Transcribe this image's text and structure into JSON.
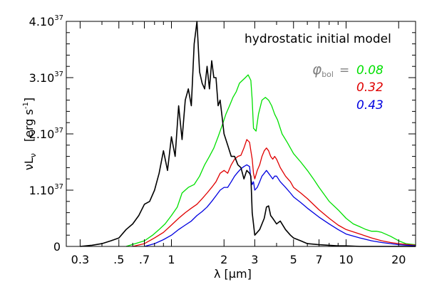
{
  "chart_data": {
    "type": "line",
    "title": "",
    "annotation_main": "hydrostatic initial model",
    "phi_symbol": "φ",
    "phi_subscript": "bol",
    "phi_equals": "=",
    "xlabel": "λ   [μm]",
    "ylabel_main": "νL",
    "ylabel_sub": "ν",
    "ylabel_unit": "[erg s",
    "ylabel_unit_sup": "-1",
    "ylabel_unit_close": "]",
    "x_scale": "log",
    "xlim": [
      0.25,
      25
    ],
    "ylim": [
      0,
      4e+37
    ],
    "grid": false,
    "x_ticks": [
      {
        "value": 0.3,
        "label": "0.3"
      },
      {
        "value": 0.5,
        "label": ".5"
      },
      {
        "value": 0.7,
        "label": ".7"
      },
      {
        "value": 1,
        "label": "1"
      },
      {
        "value": 2,
        "label": "2"
      },
      {
        "value": 3,
        "label": "3"
      },
      {
        "value": 5,
        "label": "5"
      },
      {
        "value": 7,
        "label": "7"
      },
      {
        "value": 10,
        "label": "10"
      },
      {
        "value": 20,
        "label": "20"
      }
    ],
    "y_ticks": [
      {
        "value": 0,
        "mant": "0",
        "exp": ""
      },
      {
        "value": 1e+37,
        "mant": "1.10",
        "exp": "37"
      },
      {
        "value": 2e+37,
        "mant": "2.10",
        "exp": "37"
      },
      {
        "value": 3e+37,
        "mant": "3.10",
        "exp": "37"
      },
      {
        "value": 4e+37,
        "mant": "4.10",
        "exp": "37"
      }
    ],
    "legend": [
      {
        "label": "0.08",
        "color": "#00e000"
      },
      {
        "label": "0.32",
        "color": "#e00000"
      },
      {
        "label": "0.43",
        "color": "#0000e0"
      }
    ],
    "series": [
      {
        "label": "0.08",
        "color": "#00e000",
        "x": [
          0.55,
          0.62,
          0.7,
          0.78,
          0.85,
          0.92,
          1.0,
          1.08,
          1.15,
          1.25,
          1.35,
          1.45,
          1.55,
          1.65,
          1.75,
          1.85,
          1.95,
          2.05,
          2.15,
          2.25,
          2.35,
          2.45,
          2.55,
          2.65,
          2.75,
          2.85,
          2.9,
          2.95,
          3.05,
          3.15,
          3.3,
          3.45,
          3.6,
          3.75,
          3.9,
          4.05,
          4.3,
          4.6,
          5.0,
          5.5,
          6.0,
          6.5,
          7.0,
          8.0,
          9.0,
          10.0,
          11.0,
          12.0,
          13.0,
          14.0,
          15.0,
          16.0,
          18.0,
          20.0,
          22.0,
          25.0
        ],
        "y": [
          0.0,
          0.05,
          0.1,
          0.2,
          0.3,
          0.4,
          0.55,
          0.7,
          0.95,
          1.05,
          1.1,
          1.25,
          1.45,
          1.6,
          1.75,
          1.95,
          2.15,
          2.35,
          2.5,
          2.65,
          2.75,
          2.9,
          2.95,
          3.0,
          3.05,
          2.95,
          2.6,
          2.1,
          2.05,
          2.35,
          2.6,
          2.65,
          2.6,
          2.5,
          2.35,
          2.25,
          2.0,
          1.85,
          1.65,
          1.5,
          1.35,
          1.2,
          1.05,
          0.8,
          0.65,
          0.5,
          0.4,
          0.35,
          0.3,
          0.27,
          0.27,
          0.25,
          0.18,
          0.1,
          0.05,
          0.03
        ]
      },
      {
        "label": "0.32",
        "color": "#e00000",
        "x": [
          0.6,
          0.7,
          0.8,
          0.9,
          1.0,
          1.1,
          1.2,
          1.3,
          1.4,
          1.5,
          1.6,
          1.7,
          1.8,
          1.9,
          2.0,
          2.1,
          2.2,
          2.3,
          2.4,
          2.5,
          2.6,
          2.7,
          2.8,
          2.85,
          2.9,
          2.95,
          3.0,
          3.1,
          3.2,
          3.3,
          3.4,
          3.5,
          3.6,
          3.7,
          3.8,
          3.9,
          4.0,
          4.2,
          4.5,
          4.8,
          5.0,
          5.5,
          6.0,
          7.0,
          8.0,
          9.0,
          10.0,
          12.0,
          14.0,
          16.0,
          18.0,
          20.0,
          25.0
        ],
        "y": [
          0.0,
          0.05,
          0.15,
          0.25,
          0.38,
          0.5,
          0.6,
          0.68,
          0.75,
          0.85,
          0.95,
          1.05,
          1.15,
          1.3,
          1.35,
          1.3,
          1.45,
          1.55,
          1.6,
          1.62,
          1.75,
          1.9,
          1.85,
          1.7,
          1.55,
          1.3,
          1.2,
          1.35,
          1.45,
          1.6,
          1.7,
          1.75,
          1.7,
          1.6,
          1.55,
          1.6,
          1.55,
          1.4,
          1.25,
          1.15,
          1.05,
          0.95,
          0.85,
          0.65,
          0.5,
          0.38,
          0.3,
          0.22,
          0.15,
          0.1,
          0.07,
          0.05,
          0.02
        ]
      },
      {
        "label": "0.43",
        "color": "#0000e0",
        "x": [
          0.7,
          0.8,
          0.9,
          1.0,
          1.1,
          1.2,
          1.3,
          1.4,
          1.5,
          1.6,
          1.7,
          1.8,
          1.9,
          2.0,
          2.1,
          2.2,
          2.3,
          2.4,
          2.5,
          2.6,
          2.7,
          2.8,
          2.85,
          2.9,
          2.95,
          3.0,
          3.1,
          3.2,
          3.3,
          3.4,
          3.5,
          3.6,
          3.7,
          3.8,
          3.9,
          4.0,
          4.2,
          4.5,
          4.8,
          5.0,
          5.5,
          6.0,
          7.0,
          8.0,
          9.0,
          10.0,
          12.0,
          14.0,
          16.0,
          18.0,
          20.0,
          25.0
        ],
        "y": [
          0.0,
          0.05,
          0.12,
          0.2,
          0.3,
          0.38,
          0.45,
          0.55,
          0.62,
          0.7,
          0.8,
          0.9,
          1.0,
          1.05,
          1.05,
          1.15,
          1.25,
          1.32,
          1.38,
          1.42,
          1.45,
          1.42,
          1.2,
          1.1,
          1.15,
          1.0,
          1.05,
          1.15,
          1.25,
          1.3,
          1.35,
          1.3,
          1.25,
          1.2,
          1.25,
          1.25,
          1.15,
          1.05,
          0.95,
          0.88,
          0.78,
          0.68,
          0.52,
          0.4,
          0.3,
          0.22,
          0.15,
          0.1,
          0.07,
          0.05,
          0.03,
          0.01
        ]
      },
      {
        "label": "black",
        "color": "#000000",
        "x": [
          0.3,
          0.35,
          0.4,
          0.45,
          0.5,
          0.55,
          0.6,
          0.65,
          0.7,
          0.75,
          0.8,
          0.85,
          0.9,
          0.95,
          1.0,
          1.05,
          1.1,
          1.15,
          1.2,
          1.25,
          1.3,
          1.35,
          1.4,
          1.45,
          1.5,
          1.55,
          1.6,
          1.65,
          1.7,
          1.75,
          1.8,
          1.85,
          1.9,
          1.95,
          2.0,
          2.1,
          2.2,
          2.3,
          2.4,
          2.5,
          2.6,
          2.7,
          2.8,
          2.85,
          2.9,
          3.0,
          3.2,
          3.4,
          3.5,
          3.6,
          3.7,
          3.8,
          3.9,
          4.0,
          4.2,
          4.5,
          4.8,
          5.0,
          5.5,
          6.0,
          7.0,
          8.0,
          9.0,
          10.0,
          12.0,
          15.0,
          20.0,
          25.0
        ],
        "y": [
          0.0,
          0.02,
          0.05,
          0.1,
          0.15,
          0.3,
          0.4,
          0.55,
          0.75,
          0.8,
          1.0,
          1.3,
          1.7,
          1.35,
          1.95,
          1.6,
          2.5,
          1.9,
          2.6,
          2.8,
          2.5,
          3.6,
          4.0,
          3.1,
          2.9,
          2.8,
          3.2,
          2.8,
          3.3,
          3.0,
          3.0,
          2.5,
          2.6,
          2.3,
          2.0,
          1.8,
          1.6,
          1.6,
          1.45,
          1.4,
          1.2,
          1.35,
          1.3,
          1.25,
          0.6,
          0.2,
          0.3,
          0.5,
          0.7,
          0.72,
          0.55,
          0.5,
          0.45,
          0.4,
          0.45,
          0.3,
          0.2,
          0.15,
          0.1,
          0.05,
          0.03,
          0.02,
          0.01,
          0.01,
          0.0,
          0.0,
          0.0,
          0.0
        ]
      }
    ]
  }
}
